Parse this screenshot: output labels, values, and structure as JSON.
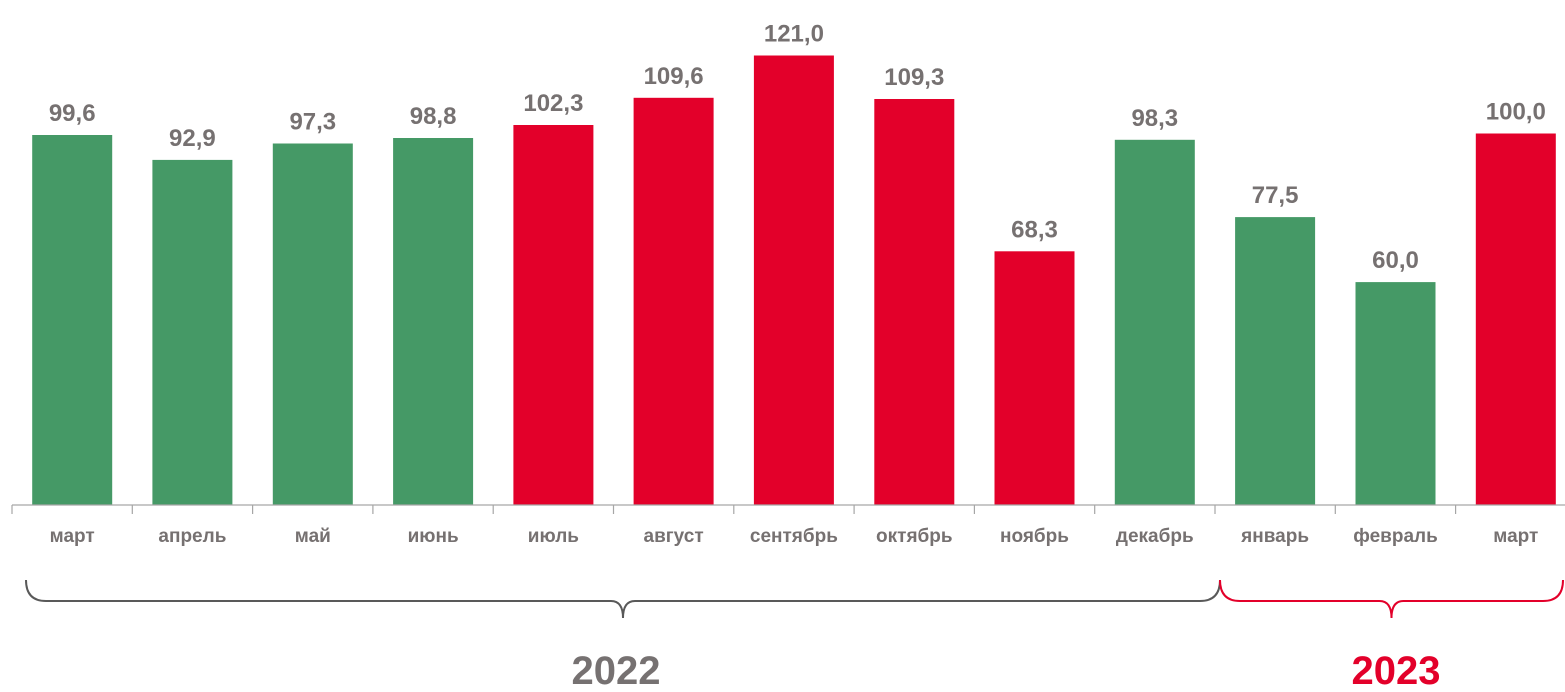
{
  "chart_data": {
    "type": "bar",
    "categories": [
      "март",
      "апрель",
      "май",
      "июнь",
      "июль",
      "август",
      "сентябрь",
      "октябрь",
      "ноябрь",
      "декабрь",
      "январь",
      "февраль",
      "март"
    ],
    "values": [
      99.6,
      92.9,
      97.3,
      98.8,
      102.3,
      109.6,
      121.0,
      109.3,
      68.3,
      98.3,
      77.5,
      60.0,
      100.0
    ],
    "value_labels": [
      "99,6",
      "92,9",
      "97,3",
      "98,8",
      "102,3",
      "109,6",
      "121,0",
      "109,3",
      "68,3",
      "98,3",
      "77,5",
      "60,0",
      "100,0"
    ],
    "bar_colors": [
      "#459966",
      "#459966",
      "#459966",
      "#459966",
      "#E3002A",
      "#E3002A",
      "#E3002A",
      "#E3002A",
      "#E3002A",
      "#459966",
      "#459966",
      "#459966",
      "#E3002A"
    ],
    "ylim": [
      0,
      130
    ],
    "grid": false,
    "groups": [
      {
        "label": "2022",
        "from": 0,
        "to": 9,
        "color": "#595959"
      },
      {
        "label": "2023",
        "from": 10,
        "to": 12,
        "color": "#E3002A"
      }
    ]
  },
  "colors": {
    "green": "#459966",
    "red": "#E3002A",
    "label_gray": "#767171",
    "axis": "#A6A6A6"
  }
}
